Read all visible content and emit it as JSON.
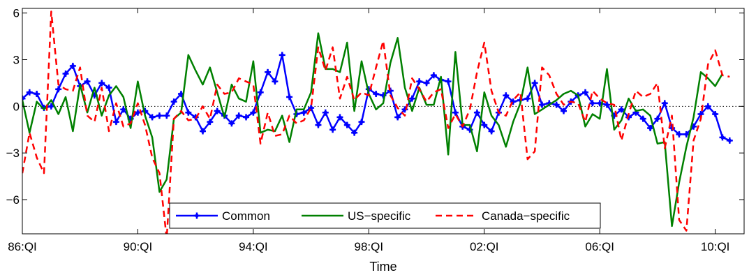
{
  "chart_data": {
    "type": "line",
    "xlabel": "Time",
    "ylabel": "",
    "title": "",
    "xlim": [
      1986.0,
      2011.0
    ],
    "ylim": [
      -8.2,
      6.3
    ],
    "y_ticks": [
      -6,
      -3,
      0,
      3,
      6
    ],
    "y_tick_labels": [
      "−6",
      "−3",
      "0",
      "3",
      "6"
    ],
    "x_ticks": [
      1986.0,
      1990.0,
      1994.0,
      1998.0,
      2002.0,
      2006.0,
      2010.0
    ],
    "x_tick_labels": [
      "86:QI",
      "90:QI",
      "94:QI",
      "98:QI",
      "02:QI",
      "06:QI",
      "10:QI"
    ],
    "zero_line": true,
    "grid": false,
    "legend_position": "bottom-center",
    "series": [
      {
        "name": "Common",
        "color": "#0000ff",
        "style": "solid-markers",
        "start": 1986.0,
        "step": 0.25,
        "values": [
          0.5,
          0.9,
          0.8,
          -0.1,
          0.0,
          1.1,
          2.1,
          2.6,
          1.3,
          1.6,
          0.7,
          1.5,
          1.2,
          -1.0,
          -0.2,
          -0.8,
          -0.4,
          -0.3,
          -0.7,
          -0.6,
          -0.6,
          0.3,
          0.8,
          -0.4,
          -0.7,
          -1.6,
          -1.0,
          -0.3,
          -0.6,
          -1.1,
          -0.6,
          -0.7,
          -0.4,
          0.9,
          2.2,
          1.6,
          3.3,
          0.6,
          -0.5,
          -0.4,
          -0.1,
          -1.2,
          -0.4,
          -1.5,
          -0.7,
          -1.2,
          -1.7,
          -1.0,
          1.1,
          0.8,
          0.7,
          1.0,
          -0.7,
          -0.2,
          0.5,
          1.6,
          1.5,
          2.0,
          1.7,
          1.6,
          -0.4,
          -1.3,
          -1.5,
          -0.4,
          -1.2,
          -1.6,
          -0.4,
          0.7,
          0.3,
          0.4,
          0.5,
          1.5,
          0.1,
          0.2,
          0.1,
          -0.3,
          0.3,
          0.7,
          0.9,
          0.2,
          0.2,
          0.1,
          -0.6,
          -0.2,
          -0.7,
          -0.4,
          -0.8,
          -1.4,
          -0.8,
          0.2,
          -1.4,
          -1.8,
          -1.8,
          -1.3,
          -0.5,
          0.0,
          -0.5,
          -2.0,
          -2.2
        ]
      },
      {
        "name": "US−specific",
        "color": "#008000",
        "style": "solid",
        "start": 1986.0,
        "step": 0.25,
        "values": [
          0.4,
          -1.7,
          0.3,
          -0.2,
          0.4,
          -0.5,
          0.6,
          -1.6,
          1.4,
          -0.4,
          1.2,
          -0.6,
          0.7,
          1.3,
          0.6,
          -1.4,
          1.6,
          -0.6,
          -2.0,
          -5.5,
          -4.7,
          -0.8,
          -0.4,
          3.3,
          2.3,
          1.4,
          2.5,
          0.9,
          -0.7,
          1.4,
          0.5,
          0.3,
          2.9,
          -1.7,
          -1.5,
          -1.6,
          -0.6,
          -2.3,
          -0.2,
          -0.2,
          0.9,
          4.7,
          2.4,
          2.4,
          2.2,
          4.1,
          -0.3,
          2.9,
          0.8,
          -0.2,
          0.2,
          2.8,
          4.4,
          1.2,
          -0.3,
          1.2,
          0.1,
          0.1,
          1.9,
          -3.1,
          3.5,
          -1.2,
          -1.2,
          -2.9,
          0.9,
          -0.6,
          -1.2,
          -2.6,
          -1.0,
          0.2,
          2.5,
          -0.5,
          -0.2,
          0.1,
          0.4,
          0.8,
          1.0,
          0.7,
          -1.3,
          -0.5,
          -0.8,
          2.4,
          -1.5,
          -0.9,
          0.5,
          -0.3,
          -0.2,
          -0.6,
          -2.4,
          -2.3,
          -7.7,
          -4.9,
          -2.6,
          -0.7,
          2.2,
          1.8,
          1.3,
          2.1
        ]
      },
      {
        "name": "Canada−specific",
        "color": "#ff0000",
        "style": "dashed",
        "start": 1986.0,
        "step": 0.25,
        "values": [
          -4.3,
          -1.7,
          -3.3,
          -4.3,
          6.1,
          1.4,
          1.1,
          1.0,
          2.5,
          -0.6,
          -1.0,
          1.2,
          -1.6,
          0.2,
          -1.3,
          -1.1,
          0.2,
          -1.2,
          -3.3,
          -4.3,
          -8.5,
          -0.8,
          -0.3,
          -0.9,
          -0.8,
          0.0,
          -0.8,
          1.4,
          0.8,
          0.9,
          1.8,
          1.6,
          1.4,
          -2.4,
          -0.4,
          -1.9,
          -1.8,
          -0.6,
          -1.1,
          -0.9,
          -0.1,
          3.8,
          2.3,
          3.8,
          0.5,
          1.9,
          0.4,
          0.9,
          0.7,
          2.5,
          4.2,
          0.7,
          -0.1,
          -0.6,
          1.8,
          1.1,
          0.3,
          0.9,
          1.1,
          -1.4,
          -0.5,
          -1.3,
          -0.2,
          2.2,
          4.1,
          1.0,
          -0.4,
          -0.6,
          0.4,
          0.9,
          -3.4,
          -2.9,
          2.5,
          2.0,
          0.8,
          0.1,
          0.3,
          0.2,
          -1.0,
          1.0,
          0.5,
          0.2,
          0.1,
          -2.2,
          -0.5,
          1.0,
          0.6,
          0.8,
          1.5,
          -2.7,
          -0.6,
          -7.3,
          -8.0,
          -2.2,
          -0.8,
          2.7,
          3.6,
          2.0,
          1.9
        ]
      }
    ]
  }
}
